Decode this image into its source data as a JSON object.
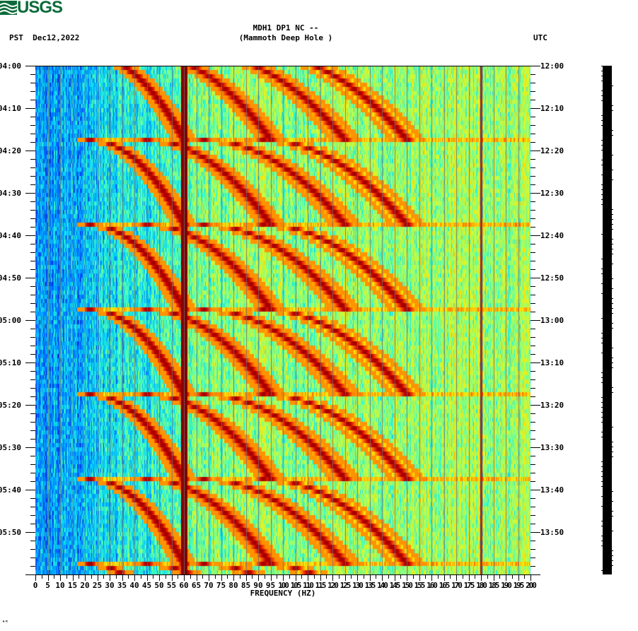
{
  "header": {
    "logo_text": "USGS",
    "station_line": "MDH1 DP1 NC --",
    "station_name": "(Mammoth Deep Hole )",
    "left_timezone": "PST",
    "date": "Dec12,2022",
    "right_timezone": "UTC"
  },
  "footer_mark": "ᴬᴴ",
  "colors": {
    "logo": "#0b6b3a",
    "colormap": [
      "#0000a0",
      "#0050ff",
      "#00c8ff",
      "#40ffc0",
      "#c8ff40",
      "#ffe000",
      "#ff6000",
      "#c00000",
      "#800000"
    ]
  },
  "chart_data": {
    "type": "heatmap",
    "title": "MDH1 DP1 NC -- (Mammoth Deep Hole )",
    "subtitle": "PST Dec12,2022 / UTC",
    "xlabel": "FREQUENCY (HZ)",
    "ylabel_left": "PST",
    "ylabel_right": "UTC",
    "xlim": [
      0,
      200
    ],
    "x_ticks": [
      0,
      5,
      10,
      15,
      20,
      25,
      30,
      35,
      40,
      45,
      50,
      55,
      60,
      65,
      70,
      75,
      80,
      85,
      90,
      95,
      100,
      105,
      110,
      115,
      120,
      125,
      130,
      135,
      140,
      145,
      150,
      155,
      160,
      165,
      170,
      175,
      180,
      185,
      190,
      195,
      200
    ],
    "x_tick_labels": [
      "0",
      "5",
      "10",
      "15",
      "20",
      "25",
      "30",
      "35",
      "40",
      "45",
      "50",
      "55",
      "60",
      "65",
      "70",
      "75",
      "80",
      "85",
      "90",
      "95",
      "100",
      "105",
      "110",
      "115",
      "120",
      "125",
      "130",
      "135",
      "140",
      "145",
      "150",
      "155",
      "160",
      "165",
      "170",
      "175",
      "180",
      "185",
      "190",
      "195",
      "200"
    ],
    "y_ticks_left": [
      "04:00",
      "04:10",
      "04:20",
      "04:30",
      "04:40",
      "04:50",
      "05:00",
      "05:10",
      "05:20",
      "05:30",
      "05:40",
      "05:50"
    ],
    "y_ticks_right": [
      "12:00",
      "12:10",
      "12:20",
      "12:30",
      "12:40",
      "12:50",
      "13:00",
      "13:10",
      "13:20",
      "13:30",
      "13:40",
      "13:50"
    ],
    "time_range_minutes": 120,
    "minor_tick_minutes": 2,
    "persistent_lines_hz": [
      60,
      180
    ],
    "sweep_period_minutes": 20,
    "sweep_starts_minutes": [
      -3,
      17,
      37,
      57,
      77,
      97,
      117
    ],
    "sweep_start_freq_hz": 22,
    "sweep_harmonics_hz": [
      [
        22,
        60
      ],
      [
        45,
        95
      ],
      [
        68,
        125
      ],
      [
        92,
        150
      ]
    ],
    "background_gradient": "blue at low frequency (0-40 Hz) to green/yellow at 50-200 Hz",
    "grid": "vertical gray lines every 5 Hz",
    "legend": "black amplitude scale bar at right"
  }
}
